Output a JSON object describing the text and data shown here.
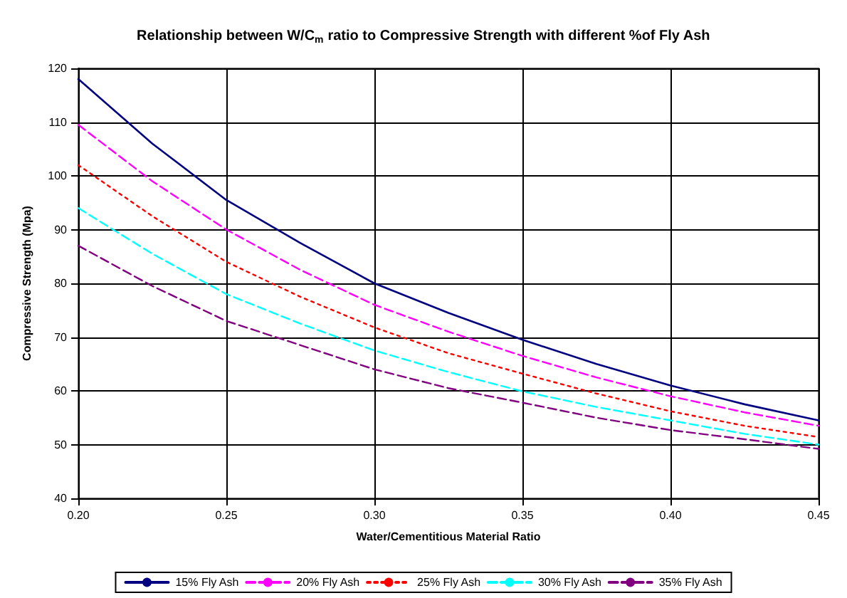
{
  "chart_data": {
    "type": "line",
    "title": "Relationship between W/C$_{m}$ ratio to Compressive Strength with different %of Fly Ash",
    "xlabel": "Water/Cementitious Material Ratio",
    "ylabel": "Compressive Strength (Mpa)",
    "x": [
      0.2,
      0.225,
      0.25,
      0.275,
      0.3,
      0.325,
      0.35,
      0.375,
      0.4,
      0.425,
      0.45
    ],
    "xlim": [
      0.2,
      0.45
    ],
    "xticks": [
      {
        "value": 0.2,
        "label": "0.20"
      },
      {
        "value": 0.25,
        "label": "0.25"
      },
      {
        "value": 0.3,
        "label": "0.30"
      },
      {
        "value": 0.35,
        "label": "0.35"
      },
      {
        "value": 0.4,
        "label": "0.40"
      },
      {
        "value": 0.45,
        "label": "0.45"
      }
    ],
    "ylim": [
      40,
      120
    ],
    "yticks": [
      40,
      50,
      60,
      70,
      80,
      90,
      100,
      110,
      120
    ],
    "grid": true,
    "legend": "bottom",
    "marker": "none",
    "series": [
      {
        "name": "15% Fly Ash",
        "color": "#000080",
        "line_style": "solid",
        "values": [
          118,
          106,
          95.5,
          87.5,
          80,
          74.5,
          69.5,
          65,
          61,
          57.5,
          54.5
        ]
      },
      {
        "name": "20% Fly Ash",
        "color": "#ff00ff",
        "line_style": "dashed",
        "values": [
          109.5,
          99,
          90,
          82.5,
          76,
          71,
          66.5,
          62.5,
          59,
          56,
          53.5
        ]
      },
      {
        "name": "25% Fly Ash",
        "color": "#ff0000",
        "line_style": "dotted",
        "values": [
          102,
          92.5,
          84,
          77.5,
          71.8,
          67,
          63.2,
          59.5,
          56.2,
          53.5,
          51.4
        ]
      },
      {
        "name": "30% Fly Ash",
        "color": "#00ffff",
        "line_style": "dashed",
        "values": [
          94,
          85.5,
          78,
          72.5,
          67.5,
          63.5,
          59.9,
          57,
          54.5,
          52,
          50
        ]
      },
      {
        "name": "35% Fly Ash",
        "color": "#800080",
        "line_style": "dashed",
        "values": [
          87,
          79.5,
          73,
          68.5,
          64,
          60.5,
          57.8,
          55,
          52.7,
          51,
          49.2
        ]
      }
    ]
  }
}
